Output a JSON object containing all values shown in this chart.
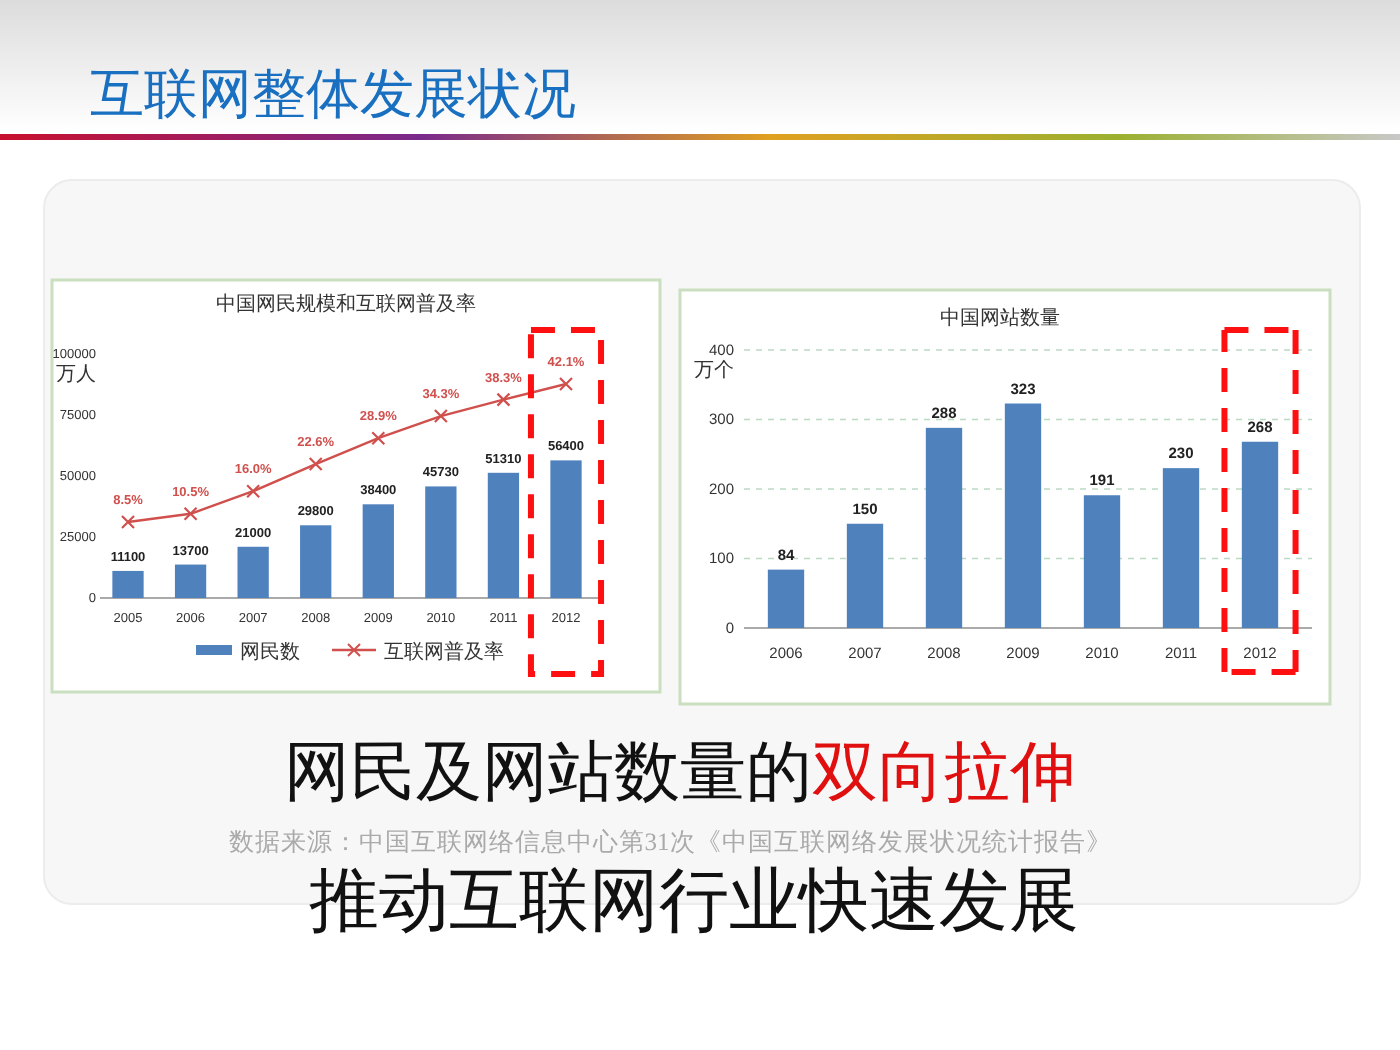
{
  "chart_data": [
    {
      "type": "bar",
      "title": "中国网民规模和互联网普及率",
      "ylabel": "万人",
      "categories": [
        "2005",
        "2006",
        "2007",
        "2008",
        "2009",
        "2010",
        "2011",
        "2012"
      ],
      "series": [
        {
          "name": "网民数",
          "type": "bar",
          "color": "#4f81bd",
          "values": [
            11100,
            13700,
            21000,
            29800,
            38400,
            45730,
            51310,
            56400
          ],
          "value_labels": [
            "11100",
            "13700",
            "21000",
            "29800",
            "38400",
            "45730",
            "51310",
            "56400"
          ]
        },
        {
          "name": "互联网普及率",
          "type": "line",
          "axis": "y2",
          "color": "#d0504d",
          "values": [
            8.5,
            10.5,
            16.0,
            22.6,
            28.9,
            34.3,
            38.3,
            42.1
          ],
          "value_labels": [
            "8.5%",
            "10.5%",
            "16.0%",
            "22.6%",
            "28.9%",
            "34.3%",
            "38.3%",
            "42.1%"
          ]
        }
      ],
      "ylim": [
        0,
        100000
      ],
      "yticks": [
        0,
        25000,
        50000,
        75000,
        100000
      ],
      "marker": "cross",
      "legend": "bottom"
    },
    {
      "type": "bar",
      "title": "中国网站数量",
      "ylabel": "万个",
      "categories": [
        "2006",
        "2007",
        "2008",
        "2009",
        "2010",
        "2011",
        "2012"
      ],
      "values": [
        84,
        150,
        288,
        323,
        191,
        230,
        268
      ],
      "color": "#4f81bd",
      "ylim": [
        0,
        400
      ],
      "yticks": [
        0,
        100,
        200,
        300,
        400
      ],
      "grid": "y",
      "data_labels": true
    },
    {
      "type": "other",
      "title": "互联网整体发展状况",
      "annotations": [
        "网民及网站数量的",
        "双向拉伸",
        "数据来源：中国互联网络信息中心第31次《中国互联网络发展状况统计报告》",
        "推动互联网行业快速发展"
      ]
    }
  ]
}
